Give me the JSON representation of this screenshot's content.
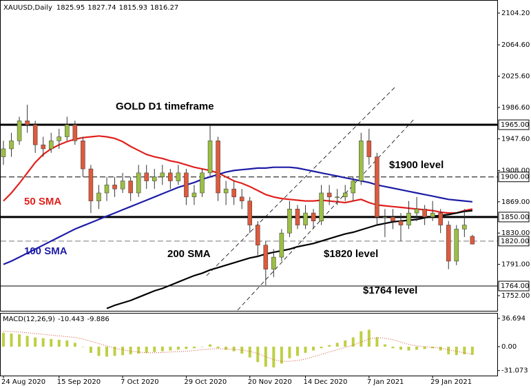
{
  "chart_data": [
    {
      "type": "candlestick",
      "title": "GOLD D1 timeframe",
      "symbol": "XAUUSD,Daily",
      "categories": [
        "24 Aug 2020",
        null,
        null,
        null,
        null,
        null,
        null,
        "15 Sep 2020",
        null,
        null,
        null,
        null,
        null,
        null,
        null,
        "7 Oct 2020",
        null,
        null,
        null,
        null,
        null,
        null,
        null,
        "29 Oct 2020",
        null,
        null,
        null,
        null,
        null,
        null,
        null,
        "20 Nov 2020",
        null,
        null,
        null,
        null,
        null,
        null,
        "14 Dec 2020",
        null,
        null,
        null,
        null,
        null,
        null,
        null,
        "7 Jan 2021",
        null,
        null,
        null,
        null,
        null,
        null,
        null,
        "29 Jan 2021",
        null,
        null,
        null,
        null,
        null
      ],
      "open": [
        1925,
        1935,
        1945,
        1970,
        1965,
        1940,
        1935,
        1945,
        1950,
        1965,
        1945,
        1910,
        1870,
        1880,
        1890,
        1885,
        1895,
        1880,
        1905,
        1895,
        1900,
        1905,
        1895,
        1905,
        1875,
        1880,
        1905,
        1945,
        1880,
        1885,
        1875,
        1870,
        1840,
        1815,
        1785,
        1800,
        1830,
        1860,
        1840,
        1855,
        1845,
        1880,
        1875,
        1875,
        1880,
        1895,
        1945,
        1925,
        1850,
        1850,
        1845,
        1840,
        1855,
        1860,
        1850,
        1855,
        1840,
        1795,
        1835,
        1825.95
      ],
      "high": [
        1945,
        1955,
        1975,
        1990,
        1970,
        1950,
        1955,
        1960,
        1975,
        1970,
        1950,
        1915,
        1890,
        1900,
        1900,
        1905,
        1900,
        1915,
        1915,
        1910,
        1915,
        1910,
        1915,
        1910,
        1890,
        1910,
        1965,
        1950,
        1895,
        1895,
        1885,
        1875,
        1845,
        1820,
        1810,
        1835,
        1870,
        1865,
        1865,
        1860,
        1890,
        1890,
        1885,
        1890,
        1900,
        1955,
        1960,
        1930,
        1860,
        1860,
        1855,
        1870,
        1875,
        1865,
        1870,
        1860,
        1845,
        1840,
        1860,
        1827.74
      ],
      "low": [
        1915,
        1925,
        1940,
        1955,
        1930,
        1925,
        1930,
        1935,
        1945,
        1940,
        1900,
        1855,
        1860,
        1870,
        1875,
        1880,
        1870,
        1875,
        1885,
        1885,
        1890,
        1885,
        1890,
        1865,
        1865,
        1875,
        1900,
        1870,
        1865,
        1865,
        1860,
        1830,
        1800,
        1765,
        1775,
        1795,
        1825,
        1835,
        1835,
        1835,
        1840,
        1865,
        1865,
        1870,
        1870,
        1890,
        1915,
        1840,
        1825,
        1835,
        1820,
        1835,
        1845,
        1840,
        1845,
        1830,
        1785,
        1790,
        1825,
        1815.93
      ],
      "close": [
        1935,
        1945,
        1970,
        1965,
        1940,
        1935,
        1945,
        1950,
        1965,
        1945,
        1910,
        1870,
        1880,
        1890,
        1885,
        1895,
        1880,
        1905,
        1895,
        1900,
        1905,
        1895,
        1905,
        1875,
        1880,
        1905,
        1945,
        1880,
        1885,
        1875,
        1870,
        1840,
        1815,
        1785,
        1800,
        1830,
        1860,
        1840,
        1855,
        1845,
        1880,
        1875,
        1875,
        1880,
        1895,
        1945,
        1925,
        1850,
        1850,
        1845,
        1840,
        1855,
        1860,
        1850,
        1855,
        1840,
        1795,
        1835,
        1840,
        1816.27
      ],
      "up_color": "#9cbf45",
      "down_color": "#dd5a3c",
      "series": [
        {
          "name": "50 SMA",
          "color": "#e0201c",
          "values": [
            1870,
            1880,
            1892,
            1905,
            1918,
            1928,
            1935,
            1940,
            1944,
            1947,
            1949,
            1950,
            1951,
            1950,
            1948,
            1944,
            1938,
            1933,
            1928,
            1925,
            1923,
            1920,
            1918,
            1915,
            1912,
            1910,
            1908,
            1905,
            1900,
            1895,
            1892,
            1888,
            1883,
            1878,
            1875,
            1873,
            1872,
            1871,
            1870,
            1870,
            1871,
            1870,
            1869,
            1868,
            1870,
            1872,
            1868,
            1865,
            1864,
            1863,
            1862,
            1861,
            1860,
            1859,
            1858,
            1856,
            1855,
            1855,
            1858,
            1860
          ]
        },
        {
          "name": "100 SMA",
          "color": "#1c1ca6",
          "values": [
            1791,
            1795,
            1800,
            1805,
            1810,
            1815,
            1820,
            1825,
            1830,
            1835,
            1839,
            1843,
            1847,
            1851,
            1855,
            1859,
            1863,
            1867,
            1871,
            1875,
            1879,
            1883,
            1887,
            1890,
            1893,
            1897,
            1900,
            1903,
            1906,
            1908,
            1909,
            1910,
            1911,
            1911,
            1912,
            1912,
            1912,
            1911,
            1909,
            1907,
            1905,
            1903,
            1901,
            1899,
            1897,
            1895,
            1893,
            1890,
            1888,
            1886,
            1884,
            1882,
            1880,
            1878,
            1876,
            1874,
            1872,
            1871,
            1870,
            1869
          ]
        },
        {
          "name": "200 SMA",
          "color": "#000000",
          "values": [
            null,
            null,
            null,
            null,
            null,
            null,
            null,
            null,
            null,
            null,
            null,
            null,
            null,
            1736,
            1740,
            1743,
            1746,
            1750,
            1754,
            1758,
            1761,
            1765,
            1769,
            1773,
            1777,
            1780,
            1784,
            1787,
            1790,
            1793,
            1796,
            1799,
            1801,
            1804,
            1806,
            1808,
            1810,
            1813,
            1815,
            1817,
            1820,
            1823,
            1826,
            1829,
            1831,
            1834,
            1837,
            1840,
            1842,
            1844,
            1845,
            1846,
            1847,
            1849,
            1851,
            1852,
            1853,
            1855,
            1857,
            1858
          ]
        }
      ],
      "levels": [
        {
          "value": 1965,
          "label": "1965.00",
          "style": "bold",
          "color": "#000000"
        },
        {
          "value": 1900,
          "label": "1900.00",
          "style": "dashed",
          "color": "#000000"
        },
        {
          "value": 1850,
          "label": "1850.00",
          "style": "bold",
          "color": "#000000"
        },
        {
          "value": 1820,
          "label": "1820.00",
          "style": "dashed",
          "color": "#777777"
        },
        {
          "value": 1764,
          "label": "1764.00",
          "style": "solid",
          "color": "#000000"
        }
      ],
      "annotations": [
        "$1900 level",
        "$1820 level",
        "$1764 level"
      ],
      "ylim": [
        1733.1,
        2116.2
      ],
      "yticks": [
        {
          "value": 2104.2,
          "label": "2104.20"
        },
        {
          "value": 2064.6,
          "label": "2064.60"
        },
        {
          "value": 2025.6,
          "label": "2025.60"
        },
        {
          "value": 1986.6,
          "label": "1986.60"
        },
        {
          "value": 1947.6,
          "label": "1947.60"
        },
        {
          "value": 1908,
          "label": "1908.00"
        },
        {
          "value": 1869,
          "label": "1869.00"
        },
        {
          "value": 1830,
          "label": "1830.00"
        },
        {
          "value": 1791,
          "label": "1791.00"
        },
        {
          "value": 1752,
          "label": "1752.00"
        }
      ]
    },
    {
      "type": "bar",
      "series": [
        {
          "name": "MACD(12,26,9)",
          "color": "#bfcf45",
          "values": [
            18,
            17,
            16,
            14,
            12,
            11,
            10,
            9,
            8,
            5,
            0,
            -8,
            -12,
            -13,
            -12,
            -11,
            -10,
            -9,
            -8,
            -7,
            -6,
            -5,
            -4,
            -3,
            -2,
            0,
            3,
            -2,
            -4,
            -6,
            -9,
            -14,
            -20,
            -26,
            -27,
            -22,
            -15,
            -12,
            -8,
            -5,
            -2,
            2,
            5,
            8,
            12,
            20,
            22,
            12,
            3,
            -2,
            -4,
            -5,
            -4,
            -3,
            -2,
            -5,
            -10,
            -11,
            -10,
            -10.443
          ]
        },
        {
          "color": "#d04a2a",
          "style": "dotted",
          "values": [
            20,
            19.5,
            19,
            18,
            17,
            16,
            15,
            14,
            13,
            12,
            10,
            7,
            4,
            1,
            -2,
            -4,
            -6,
            -7,
            -8,
            -8,
            -7.5,
            -7,
            -6.5,
            -6,
            -5,
            -4,
            -3,
            -2.5,
            -3,
            -3.5,
            -4.5,
            -6,
            -9,
            -13,
            -17,
            -19,
            -19,
            -18,
            -16,
            -13,
            -10,
            -7,
            -4,
            -1,
            2,
            6,
            10,
            12,
            11,
            9,
            6,
            3,
            1,
            0,
            -1,
            -2,
            -4,
            -6,
            -8,
            -9.886
          ]
        }
      ],
      "ylim": [
        -37.6,
        43.0
      ],
      "yticks": [
        36.694,
        {
          "value": 0,
          "label": "0.00"
        },
        -31.073
      ]
    }
  ]
}
